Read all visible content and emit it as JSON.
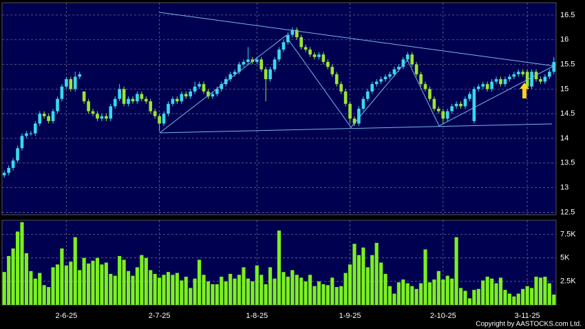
{
  "chart_data": [
    {
      "type": "candlestick",
      "categories": [
        null,
        null,
        null,
        null,
        null,
        null,
        null,
        null,
        null,
        null,
        null,
        null,
        null,
        null,
        "2-6-25",
        null,
        null,
        null,
        null,
        null,
        null,
        null,
        null,
        null,
        null,
        null,
        null,
        null,
        null,
        null,
        null,
        null,
        null,
        null,
        null,
        "2-7-25",
        null,
        null,
        null,
        null,
        null,
        null,
        null,
        null,
        null,
        null,
        null,
        null,
        null,
        null,
        null,
        null,
        null,
        null,
        null,
        null,
        null,
        "1-8-25",
        null,
        null,
        null,
        null,
        null,
        null,
        null,
        null,
        null,
        null,
        null,
        null,
        null,
        null,
        null,
        null,
        null,
        null,
        null,
        null,
        "1-9-25",
        null,
        null,
        null,
        null,
        null,
        null,
        null,
        null,
        null,
        null,
        null,
        null,
        null,
        null,
        null,
        null,
        null,
        null,
        null,
        null,
        "2-10-25",
        null,
        null,
        null,
        null,
        null,
        null,
        null,
        null,
        null,
        null,
        null,
        null,
        null,
        null,
        null,
        null,
        null,
        null,
        "3-11-25",
        null,
        null,
        null,
        null,
        null,
        null
      ],
      "open": [
        13.25,
        13.3,
        13.4,
        13.55,
        13.8,
        14.05,
        14.1,
        14.1,
        14.3,
        14.5,
        14.45,
        14.35,
        14.55,
        14.8,
        15.05,
        15.2,
        15.0,
        15.25,
        14.95,
        14.75,
        14.55,
        14.5,
        14.4,
        14.45,
        14.4,
        14.65,
        14.8,
        15.0,
        14.7,
        14.8,
        14.75,
        14.9,
        14.8,
        14.75,
        14.55,
        14.45,
        14.3,
        14.5,
        14.7,
        14.8,
        14.75,
        14.9,
        14.85,
        14.95,
        15.05,
        15.1,
        14.95,
        14.85,
        14.9,
        15.0,
        15.1,
        15.2,
        15.3,
        15.35,
        15.5,
        15.55,
        15.6,
        15.55,
        15.6,
        15.4,
        15.2,
        15.4,
        15.6,
        15.8,
        15.95,
        16.1,
        16.2,
        16.05,
        15.85,
        15.8,
        15.7,
        15.65,
        15.7,
        15.55,
        15.45,
        15.3,
        15.1,
        14.95,
        14.7,
        14.4,
        14.3,
        14.6,
        14.8,
        14.95,
        15.1,
        15.15,
        15.2,
        15.25,
        15.3,
        15.4,
        15.45,
        15.6,
        15.7,
        15.5,
        15.3,
        15.1,
        15.0,
        14.8,
        14.6,
        14.55,
        14.4,
        14.55,
        14.65,
        14.7,
        14.65,
        14.8,
        14.35,
        15.0,
        15.05,
        15.1,
        15.0,
        15.15,
        15.2,
        15.1,
        15.2,
        15.25,
        15.3,
        15.35,
        15.35,
        15.05,
        15.35,
        15.2,
        15.15,
        15.25,
        15.35
      ],
      "high": [
        13.35,
        13.45,
        13.6,
        13.85,
        14.1,
        14.15,
        14.15,
        14.35,
        14.55,
        14.55,
        14.5,
        14.6,
        14.85,
        15.1,
        15.25,
        15.25,
        15.35,
        15.35,
        14.95,
        14.8,
        14.6,
        14.55,
        14.5,
        14.5,
        14.7,
        14.85,
        15.1,
        15.05,
        14.85,
        14.85,
        14.95,
        14.95,
        14.85,
        14.8,
        14.6,
        14.5,
        14.55,
        14.75,
        14.85,
        14.85,
        14.95,
        14.95,
        15.0,
        15.15,
        15.15,
        15.15,
        15.0,
        14.95,
        15.05,
        15.15,
        15.25,
        15.35,
        15.4,
        15.55,
        15.6,
        15.85,
        15.65,
        15.65,
        15.65,
        15.45,
        15.45,
        15.65,
        15.85,
        16.0,
        16.15,
        16.25,
        16.25,
        16.1,
        15.9,
        15.85,
        15.75,
        15.75,
        15.75,
        15.6,
        15.5,
        15.35,
        15.15,
        15.0,
        14.75,
        14.45,
        14.65,
        14.85,
        15.0,
        15.15,
        15.2,
        15.25,
        15.3,
        15.35,
        15.45,
        15.5,
        15.65,
        15.75,
        15.75,
        15.55,
        15.35,
        15.15,
        15.05,
        14.85,
        14.65,
        14.6,
        14.6,
        14.7,
        14.75,
        14.75,
        14.85,
        14.95,
        15.05,
        15.1,
        15.15,
        15.15,
        15.2,
        15.25,
        15.25,
        15.25,
        15.3,
        15.35,
        15.4,
        15.4,
        15.4,
        15.4,
        15.4,
        15.25,
        15.3,
        15.4,
        15.65
      ],
      "low": [
        13.2,
        13.25,
        13.35,
        13.5,
        13.75,
        14.0,
        14.05,
        14.05,
        14.25,
        14.4,
        14.3,
        14.3,
        14.5,
        14.75,
        15.0,
        14.95,
        14.95,
        15.2,
        14.7,
        14.5,
        14.45,
        14.35,
        14.35,
        14.35,
        14.35,
        14.6,
        14.75,
        14.65,
        14.65,
        14.7,
        14.7,
        14.75,
        14.7,
        14.5,
        14.4,
        14.15,
        14.25,
        14.45,
        14.65,
        14.7,
        14.7,
        14.8,
        14.8,
        14.9,
        15.0,
        14.9,
        14.8,
        14.8,
        14.85,
        14.95,
        15.05,
        15.15,
        15.25,
        15.3,
        15.45,
        15.5,
        15.5,
        15.5,
        15.35,
        14.75,
        15.15,
        15.35,
        15.55,
        15.75,
        15.9,
        16.05,
        16.0,
        15.8,
        15.75,
        15.65,
        15.6,
        15.6,
        15.5,
        15.4,
        15.25,
        15.05,
        14.9,
        14.65,
        14.3,
        14.25,
        14.25,
        14.55,
        14.75,
        14.9,
        15.05,
        15.1,
        15.15,
        15.2,
        15.25,
        15.35,
        15.4,
        15.55,
        15.45,
        15.25,
        15.05,
        14.95,
        14.75,
        14.55,
        14.5,
        14.3,
        14.35,
        14.5,
        14.6,
        14.6,
        14.6,
        14.75,
        14.3,
        14.95,
        15.0,
        14.95,
        14.95,
        15.1,
        15.05,
        15.05,
        15.15,
        15.2,
        15.25,
        15.25,
        15.0,
        15.0,
        15.15,
        15.1,
        15.1,
        15.2,
        15.3
      ],
      "close": [
        13.3,
        13.4,
        13.55,
        13.8,
        14.05,
        14.1,
        14.1,
        14.3,
        14.5,
        14.45,
        14.35,
        14.55,
        14.8,
        15.05,
        15.2,
        15.0,
        15.25,
        15.3,
        14.75,
        14.55,
        14.5,
        14.4,
        14.45,
        14.4,
        14.65,
        14.8,
        15.0,
        14.7,
        14.8,
        14.75,
        14.9,
        14.8,
        14.75,
        14.55,
        14.45,
        14.3,
        14.5,
        14.7,
        14.8,
        14.75,
        14.9,
        14.85,
        14.95,
        15.05,
        15.1,
        14.95,
        14.85,
        14.9,
        15.0,
        15.1,
        15.2,
        15.3,
        15.35,
        15.5,
        15.55,
        15.6,
        15.55,
        15.6,
        15.4,
        15.2,
        15.4,
        15.6,
        15.8,
        15.95,
        16.1,
        16.2,
        16.05,
        15.85,
        15.8,
        15.7,
        15.65,
        15.7,
        15.55,
        15.45,
        15.3,
        15.1,
        14.95,
        14.7,
        14.4,
        14.3,
        14.6,
        14.8,
        14.95,
        15.1,
        15.15,
        15.2,
        15.25,
        15.3,
        15.4,
        15.45,
        15.6,
        15.7,
        15.5,
        15.3,
        15.1,
        15.0,
        14.8,
        14.6,
        14.55,
        14.4,
        14.55,
        14.65,
        14.7,
        14.65,
        14.8,
        14.9,
        15.0,
        15.05,
        15.1,
        15.0,
        15.15,
        15.2,
        15.1,
        15.2,
        15.25,
        15.3,
        15.35,
        15.3,
        15.05,
        15.35,
        15.2,
        15.15,
        15.25,
        15.35,
        15.55
      ],
      "up_color": "#3ad8ee",
      "down_color": "#9be535",
      "ylim": [
        12.45,
        16.75
      ],
      "yticks": [
        12.5,
        13,
        13.5,
        14,
        14.5,
        15,
        15.5,
        16,
        16.5
      ],
      "grid": true
    },
    {
      "type": "bar",
      "values": [
        3500,
        5200,
        6000,
        7800,
        8800,
        5500,
        3600,
        2800,
        3400,
        2100,
        1900,
        4000,
        4300,
        6000,
        4200,
        4600,
        7200,
        3700,
        5000,
        4400,
        4700,
        5000,
        4300,
        4500,
        3300,
        3100,
        5200,
        4800,
        3600,
        3100,
        4000,
        5300,
        5000,
        3700,
        3300,
        2900,
        3200,
        3500,
        3200,
        3400,
        2600,
        3000,
        1800,
        2800,
        4800,
        3200,
        2500,
        2200,
        2200,
        3000,
        2500,
        3300,
        2800,
        3200,
        4000,
        2800,
        2500,
        4200,
        3200,
        2200,
        4000,
        2800,
        7900,
        3500,
        3000,
        3700,
        3200,
        2900,
        2500,
        3200,
        2000,
        2500,
        2200,
        2100,
        2900,
        1900,
        2000,
        3400,
        4300,
        6500,
        5300,
        6100,
        4000,
        5300,
        6600,
        4500,
        3300,
        2000,
        1200,
        2400,
        2700,
        2300,
        2000,
        1700,
        2300,
        5900,
        2400,
        2700,
        3600,
        2700,
        3100,
        2800,
        7200,
        1800,
        1500,
        700,
        1600,
        1700,
        2600,
        3000,
        2800,
        2300,
        2900,
        1600,
        1200,
        900,
        1200,
        1700,
        2000,
        1800,
        3000,
        2900,
        3000,
        2300,
        1100
      ],
      "color": "#7cf01e",
      "ylim": [
        0,
        9000
      ],
      "yticks": [
        {
          "value": 2500,
          "label": "2.5K"
        },
        {
          "value": 5000,
          "label": "5K"
        },
        {
          "value": 7500,
          "label": "7.5K"
        }
      ],
      "grid": true
    }
  ],
  "copyright": "Copyright by AASTOCKS.com Ltd."
}
